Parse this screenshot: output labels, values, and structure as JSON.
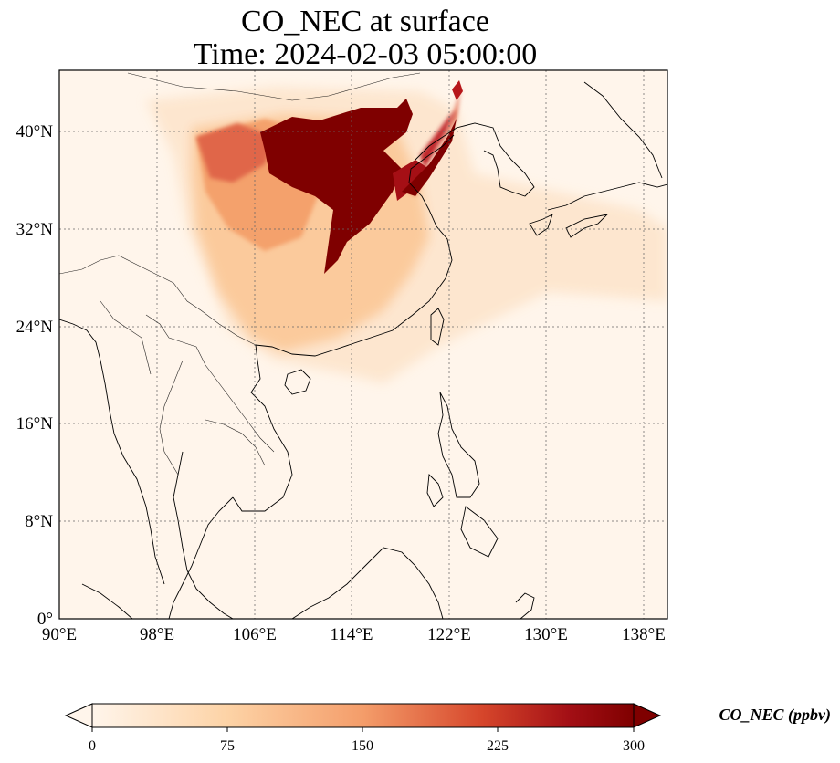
{
  "title_line1": "CO_NEC at surface",
  "title_line2": "Time: 2024-02-03 05:00:00",
  "map": {
    "lon_ticks": [
      "90°E",
      "98°E",
      "106°E",
      "114°E",
      "122°E",
      "130°E",
      "138°E"
    ],
    "lat_ticks": [
      "40°N",
      "32°N",
      "24°N",
      "16°N",
      "8°N",
      "0°"
    ],
    "lon_range": [
      90,
      140
    ],
    "lat_range": [
      0,
      45
    ],
    "gridlines": true,
    "background_color": "#fff5eb"
  },
  "colorbar": {
    "label": "CO_NEC (ppbv)",
    "ticks": [
      "0",
      "75",
      "150",
      "225",
      "300"
    ],
    "range": [
      0,
      300
    ],
    "extend": "both",
    "colors": [
      "#fff5eb",
      "#fdd3a6",
      "#f49d6a",
      "#d6462b",
      "#a30f15",
      "#7f0000"
    ]
  }
}
